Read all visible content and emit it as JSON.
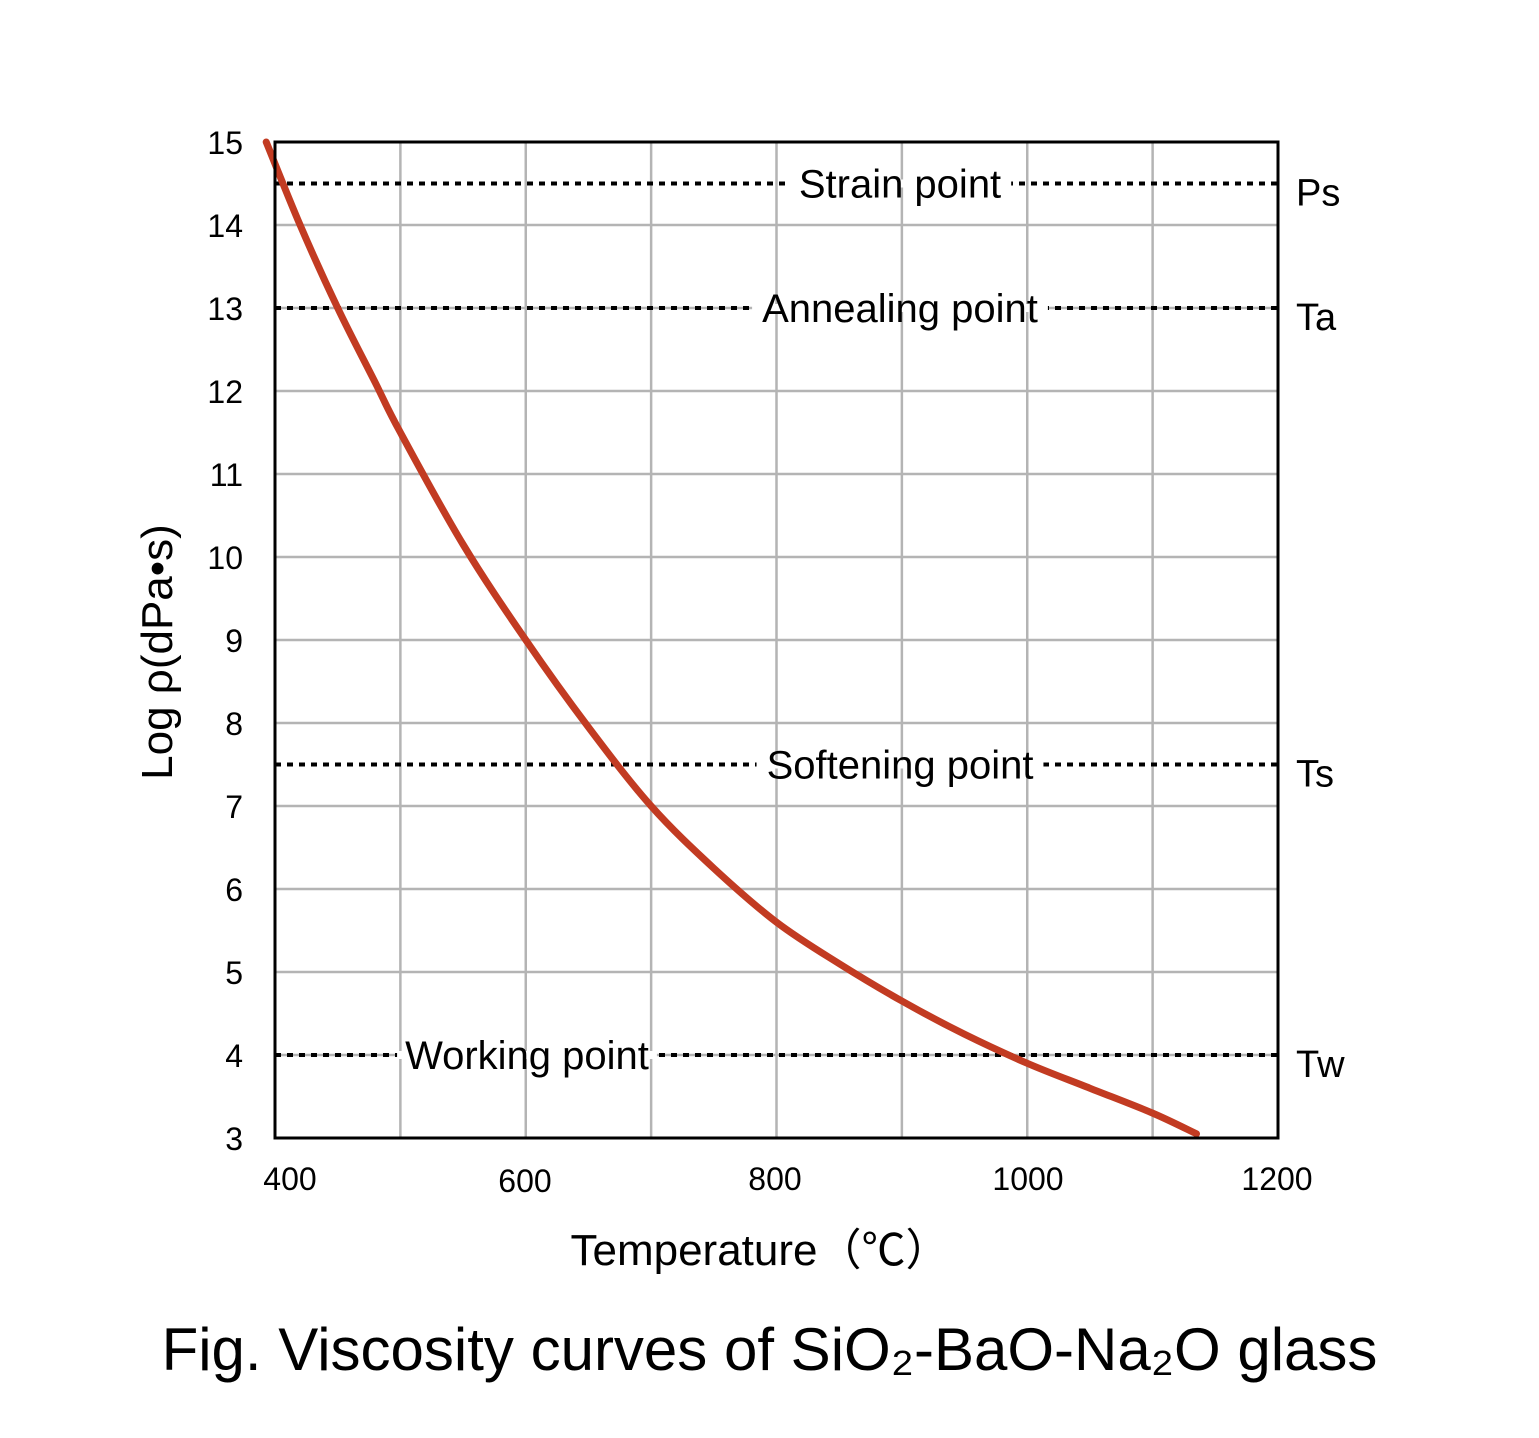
{
  "chart_data": {
    "type": "line",
    "xlabel": "Temperature（℃）",
    "ylabel": "Log ρ(dPa•s)",
    "xlim": [
      400,
      1200
    ],
    "ylim": [
      3,
      15
    ],
    "x_ticks": [
      "400",
      "600",
      "800",
      "1000",
      "1200"
    ],
    "y_ticks": [
      "3",
      "4",
      "5",
      "6",
      "7",
      "8",
      "9",
      "10",
      "11",
      "12",
      "13",
      "14",
      "15"
    ],
    "grid": true,
    "series": [
      {
        "color": "#c23b22",
        "x": [
          393,
          420,
          450,
          480,
          500,
          550,
          600,
          650,
          700,
          750,
          800,
          850,
          900,
          950,
          1000,
          1050,
          1100,
          1135
        ],
        "y": [
          15.0,
          14.0,
          13.0,
          12.1,
          11.5,
          10.15,
          9.0,
          7.95,
          7.0,
          6.25,
          5.6,
          5.1,
          4.65,
          4.25,
          3.9,
          3.6,
          3.3,
          3.05
        ]
      }
    ],
    "reference_lines": [
      {
        "y": 14.5,
        "label": "Strain point",
        "code": "Ps"
      },
      {
        "y": 13.0,
        "label": "Annealing point",
        "code": "Ta"
      },
      {
        "y": 7.5,
        "label": "Softening point",
        "code": "Ts"
      },
      {
        "y": 4.0,
        "label": "Working point",
        "code": "Tw"
      }
    ]
  },
  "caption": "Fig. Viscosity curves of SiO₂-BaO-Na₂O glass"
}
